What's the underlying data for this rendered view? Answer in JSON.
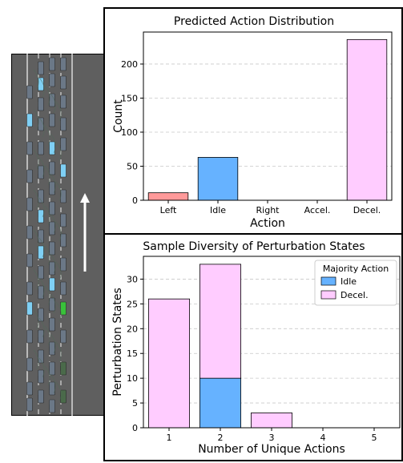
{
  "road": {
    "lanes": 4,
    "colors": {
      "road": "#5f5f5f",
      "marking": "#d9d9d9",
      "vehicle_default": "#6b7887",
      "vehicle_highlight": "#7fd0f5",
      "ego": "#39c23a",
      "vehicle_green": "#4a6a4a",
      "arrow": "#ffffff"
    }
  },
  "chart_data": [
    {
      "type": "bar",
      "title": "Predicted Action Distribution",
      "xlabel": "Action",
      "ylabel": "Count",
      "categories": [
        "Left",
        "Idle",
        "Right",
        "Accel.",
        "Decel."
      ],
      "values": [
        11,
        63,
        0,
        0,
        236
      ],
      "colors": [
        "#ff9a9a",
        "#66b2ff",
        "#ffd9a0",
        "#a0e0a0",
        "#ffccff"
      ],
      "ylim": [
        0,
        247
      ],
      "yticks": [
        0,
        50,
        100,
        150,
        200
      ],
      "grid": "y-dashed"
    },
    {
      "type": "bar",
      "stacked": true,
      "title": "Sample Diversity of Perturbation States",
      "xlabel": "Number of Unique Actions",
      "ylabel": "Perturbation States",
      "categories": [
        "1",
        "2",
        "3",
        "4",
        "5"
      ],
      "series": [
        {
          "name": "Idle",
          "color": "#66b2ff",
          "values": [
            0,
            10,
            0,
            0,
            0
          ]
        },
        {
          "name": "Decel.",
          "color": "#ffccff",
          "values": [
            26,
            23,
            3,
            0,
            0
          ]
        }
      ],
      "ylim": [
        0,
        34.6
      ],
      "yticks": [
        0,
        5,
        10,
        15,
        20,
        25,
        30
      ],
      "legend": {
        "title": "Majority Action",
        "position": "top-right"
      },
      "grid": "y-dashed"
    }
  ]
}
